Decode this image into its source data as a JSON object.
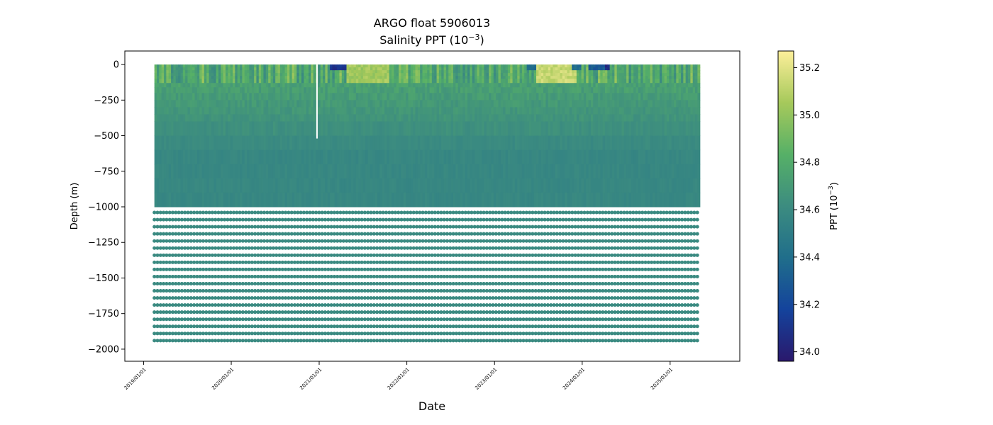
{
  "chart_data": {
    "type": "scatter",
    "title": "ARGO float 5906013",
    "subtitle_prefix": "Salinity PPT (10",
    "subtitle_exp": "−3",
    "subtitle_suffix": ")",
    "xlabel": "Date",
    "ylabel": "Depth (m)",
    "colorbar_label_prefix": "PPT (10",
    "colorbar_label_exp": "−3",
    "colorbar_label_suffix": ")",
    "x_ticks": [
      "2019/01/01",
      "2020/01/01",
      "2021/01/01",
      "2022/01/01",
      "2023/01/01",
      "2024/01/01",
      "2025/01/01"
    ],
    "y_ticks": [
      0,
      -250,
      -500,
      -750,
      -1000,
      -1250,
      -1500,
      -1750,
      -2000
    ],
    "y_range": [
      -2085,
      95
    ],
    "x_range": [
      "2018-10-15",
      "2025-10-18"
    ],
    "data_x_range": [
      "2019-02-15",
      "2025-04-25"
    ],
    "colorbar_ticks": [
      34.0,
      34.2,
      34.4,
      34.6,
      34.8,
      35.0,
      35.2
    ],
    "colorbar_range": [
      33.96,
      35.27
    ],
    "colormap": "haline",
    "colormap_stops": [
      "#2a186c",
      "#14439c",
      "#206e8b",
      "#3c8c80",
      "#56b067",
      "#a6c95b",
      "#fdef9a"
    ],
    "deep_levels_start": -1040,
    "deep_levels_step": -50,
    "deep_levels_end": -1975,
    "deep_value": 34.6,
    "series": [
      {
        "profile_gap": {
          "date": "2020-12-23",
          "depth_top": 0,
          "depth_bottom": -520
        },
        "surface_fresh_events": [
          {
            "start": "2021-02-10",
            "end": "2021-04-20",
            "value": 34.05
          },
          {
            "start": "2023-05-15",
            "end": "2023-06-15",
            "value": 34.35
          },
          {
            "start": "2023-11-15",
            "end": "2023-12-20",
            "value": 34.35
          },
          {
            "start": "2024-01-20",
            "end": "2024-04-01",
            "value": 34.25
          },
          {
            "start": "2024-03-15",
            "end": "2024-04-20",
            "value": 34.0
          }
        ],
        "surface_salty_events": [
          {
            "start": "2021-04-20",
            "end": "2021-10-10",
            "value": 35.1
          },
          {
            "start": "2023-06-15",
            "end": "2023-11-30",
            "value": 35.2
          }
        ]
      }
    ]
  }
}
